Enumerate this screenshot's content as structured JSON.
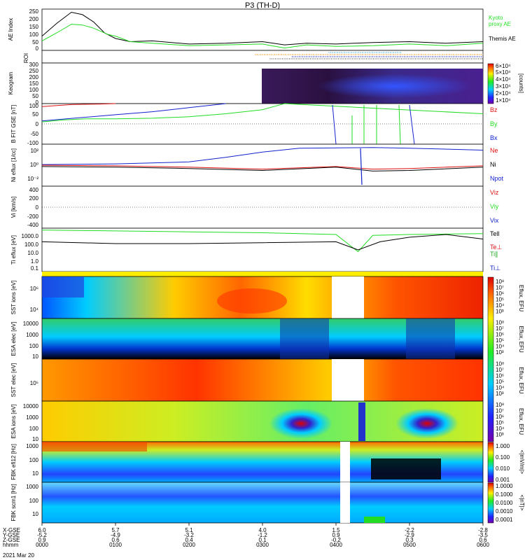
{
  "title": "P3 (TH-D)",
  "date_label": "2021 Mar 20",
  "time_axis": {
    "rows": [
      {
        "label": "X-GSE",
        "values": [
          "6.0",
          "5.7",
          "5.1",
          "4.0",
          "1.5",
          "-2.2",
          "-2.8"
        ]
      },
      {
        "label": "Y-GSE",
        "values": [
          "-5.2",
          "-4.9",
          "-3.2",
          "-1.2",
          "0.9",
          "-2.9",
          "-3.5"
        ]
      },
      {
        "label": "Z-GSE",
        "values": [
          "0.9",
          "0.6",
          "0.4",
          "0.1",
          "-0.2",
          "0.3",
          "0.6"
        ]
      },
      {
        "label": "hhmm",
        "values": [
          "0000",
          "0100",
          "0200",
          "0300",
          "0400",
          "0500",
          "0600"
        ]
      }
    ]
  },
  "colors": {
    "black": "#000000",
    "green": "#22dd22",
    "red": "#dd1111",
    "blue": "#1122cc",
    "panel_bg": "#ffffff"
  },
  "chart_data": [
    {
      "type": "line",
      "id": "ae",
      "ylabel": "AE Index",
      "yticks": [
        "250",
        "200",
        "150",
        "100",
        "50",
        "0"
      ],
      "ylim": [
        0,
        260
      ],
      "series": [
        {
          "name": "Themis AE",
          "color": "#000000",
          "x": [
            0,
            0.2,
            0.4,
            0.55,
            0.7,
            0.85,
            1.0,
            1.2,
            1.5,
            2.0,
            2.5,
            3.0,
            3.3,
            3.6,
            4.0,
            4.5,
            5.0,
            5.5,
            6.0
          ],
          "y": [
            90,
            170,
            240,
            225,
            180,
            110,
            75,
            55,
            60,
            40,
            45,
            55,
            35,
            45,
            40,
            50,
            55,
            45,
            55
          ]
        },
        {
          "name": "Kyoto proxy AE",
          "color": "#22dd22",
          "x": [
            0,
            0.2,
            0.4,
            0.55,
            0.7,
            0.9,
            1.0,
            1.2,
            1.5,
            2.0,
            2.5,
            3.0,
            3.3,
            3.6,
            4.0,
            4.5,
            5.0,
            5.5,
            6.0
          ],
          "y": [
            60,
            110,
            165,
            160,
            140,
            100,
            90,
            55,
            45,
            30,
            35,
            40,
            15,
            35,
            25,
            30,
            40,
            30,
            45
          ]
        }
      ],
      "legend": [
        "Kyoto",
        "proxy AE",
        "Themis AE"
      ]
    },
    {
      "type": "line",
      "id": "roi",
      "ylabel": "ROI",
      "series": [
        {
          "color": "#ff8800",
          "x": [
            2.9,
            6.0
          ],
          "y": [
            1,
            1
          ]
        },
        {
          "color": "#1122cc",
          "x": [
            3.4,
            6.0
          ],
          "y": [
            2,
            2
          ]
        },
        {
          "color": "#555555",
          "x": [
            3.1,
            6.0
          ],
          "y": [
            3,
            3
          ]
        },
        {
          "color": "#22aadd",
          "x": [
            3.9,
            4.9
          ],
          "y": [
            0,
            0
          ]
        }
      ]
    },
    {
      "type": "heatmap",
      "id": "kp",
      "ylabel": "Keogram",
      "yticks": [
        "300",
        "250",
        "200",
        "150",
        "100",
        "50",
        "0"
      ],
      "colorbar_labels": [
        "6×10⁴",
        "5×10⁴",
        "4×10⁴",
        "3×10⁴",
        "2×10⁴",
        "1×10⁴"
      ],
      "colorbar_unit": "[counts]"
    },
    {
      "type": "line",
      "id": "bfield",
      "ylabel": "B FIT GSE [nT]",
      "yticks": [
        "100",
        "50",
        "0",
        "-50",
        "-100"
      ],
      "ylim": [
        -100,
        100
      ],
      "legend": [
        "Bz",
        "By",
        "Bx"
      ],
      "series": [
        {
          "name": "Bz",
          "color": "#dd1111",
          "x": [
            0,
            0.4,
            0.8,
            1.0
          ],
          "y": [
            85,
            95,
            98,
            100
          ]
        },
        {
          "name": "By",
          "color": "#22dd22",
          "x": [
            0,
            0.3,
            0.6,
            1.0,
            1.5,
            2.0,
            2.5,
            3.0,
            3.3,
            6.0
          ],
          "y": [
            10,
            20,
            25,
            25,
            28,
            35,
            50,
            70,
            100,
            50
          ]
        },
        {
          "name": "Bx",
          "color": "#1122cc",
          "x": [
            0,
            0.5,
            1.0,
            1.5,
            2.0,
            2.5
          ],
          "y": [
            15,
            30,
            45,
            60,
            80,
            100
          ]
        }
      ]
    },
    {
      "type": "line",
      "id": "density",
      "ylabel": "Ni eflux [1/cc]",
      "yticks": [
        "10²",
        "10⁰",
        "10⁻²"
      ],
      "legend": [
        "Ne",
        "Ni",
        "Npot"
      ],
      "series": [
        {
          "name": "Ni",
          "color": "#1122cc",
          "x": [
            0,
            1.0,
            2.0,
            2.5,
            3.0,
            3.5,
            4.5,
            5.0,
            6.0
          ],
          "y": [
            0.1,
            0.2,
            0.5,
            1.2,
            2.0,
            2.6,
            2.7,
            2.6,
            2.3
          ]
        },
        {
          "name": "Ne",
          "color": "#dd1111",
          "x": [
            0,
            1.0,
            2.0,
            3.0,
            4.0,
            4.5,
            5.0,
            6.0
          ],
          "y": [
            0.0,
            -0.1,
            -0.3,
            -0.6,
            -0.2,
            -0.6,
            -0.5,
            -0.1
          ]
        },
        {
          "name": "Npot",
          "color": "#000000",
          "x": [
            0,
            1.0,
            2.0,
            3.0,
            4.0,
            4.5,
            5.0,
            6.0
          ],
          "y": [
            -0.2,
            -0.3,
            -0.5,
            -0.8,
            -0.3,
            -0.9,
            -0.8,
            -0.3
          ]
        }
      ]
    },
    {
      "type": "line",
      "id": "vi",
      "ylabel": "Vi [km/s]",
      "yticks": [
        "400",
        "200",
        "0",
        "-200",
        "-400"
      ],
      "legend": [
        "Viz",
        "Viy",
        "Vix"
      ]
    },
    {
      "type": "line",
      "id": "ti",
      "ylabel": "Ti eflux [eV]",
      "yticks": [
        "1000.0",
        "100.0",
        "10.0",
        "1.0",
        "0.1"
      ],
      "legend": [
        "Tell",
        "Te⊥",
        "Ti∥",
        "Ti⊥"
      ],
      "series": [
        {
          "name": "Ti",
          "color": "#22dd22",
          "x": [
            0,
            1.0,
            2.0,
            3.0,
            4.0,
            4.3,
            4.5,
            5.0,
            6.0
          ],
          "y": [
            3.4,
            3.3,
            3.2,
            3.1,
            2.9,
            1.0,
            2.8,
            2.9,
            3.0
          ]
        },
        {
          "name": "Te",
          "color": "#000000",
          "x": [
            0,
            1.0,
            2.0,
            3.0,
            4.0,
            4.3,
            4.6,
            5.0,
            5.5,
            6.0
          ],
          "y": [
            2.1,
            1.9,
            1.9,
            2.0,
            2.1,
            1.2,
            2.1,
            2.6,
            2.9,
            2.4
          ]
        }
      ]
    },
    {
      "type": "heatmap",
      "id": "sst_i",
      "ylabel": "SST ions [eV]",
      "yticks": [
        "10⁶",
        "10⁴"
      ],
      "colorbar_labels": [
        "10⁸",
        "10⁷",
        "10⁶",
        "10⁵",
        "10⁴",
        "10³"
      ],
      "colorbar_unit": "Eflux, EFU"
    },
    {
      "type": "heatmap",
      "id": "esa_e",
      "ylabel": "ESA elec [eV]",
      "yticks": [
        "10000",
        "1000",
        "100",
        "10"
      ],
      "colorbar_labels": [
        "10⁸",
        "10⁷",
        "10⁶",
        "10⁵",
        "10⁴",
        "10³"
      ],
      "colorbar_unit": "Eflux, EFU"
    },
    {
      "type": "heatmap",
      "id": "sst_e",
      "ylabel": "SST elec [eV]",
      "yticks": [
        "10⁵"
      ],
      "colorbar_labels": [
        "10⁸",
        "10⁷",
        "10⁶",
        "10⁵",
        "10⁴",
        "10³"
      ],
      "colorbar_unit": "Eflux, EFU"
    },
    {
      "type": "heatmap",
      "id": "esa_i",
      "ylabel": "ESA ions [eV]",
      "yticks": [
        "10000",
        "1000",
        "100",
        "10"
      ],
      "colorbar_labels": [
        "10⁸",
        "10⁷",
        "10⁶",
        "10⁵",
        "10⁴",
        "10³"
      ],
      "colorbar_unit": "Eflux, EFU"
    },
    {
      "type": "heatmap",
      "id": "fbk_e",
      "ylabel": "FBK efi12 [Hz]",
      "yticks": [
        "1000",
        "100",
        "10"
      ],
      "colorbar_labels": [
        "1.000",
        "0.100",
        "0.010",
        "0.001"
      ],
      "colorbar_unit": "<|mV/m|>"
    },
    {
      "type": "heatmap",
      "id": "fbk_b",
      "ylabel": "FBK scm1 [Hz]",
      "yticks": [
        "1000",
        "100",
        "10"
      ],
      "colorbar_labels": [
        "1.0000",
        "0.1000",
        "0.0100",
        "0.0010",
        "0.0001"
      ],
      "colorbar_unit": "<|nT|>"
    }
  ]
}
